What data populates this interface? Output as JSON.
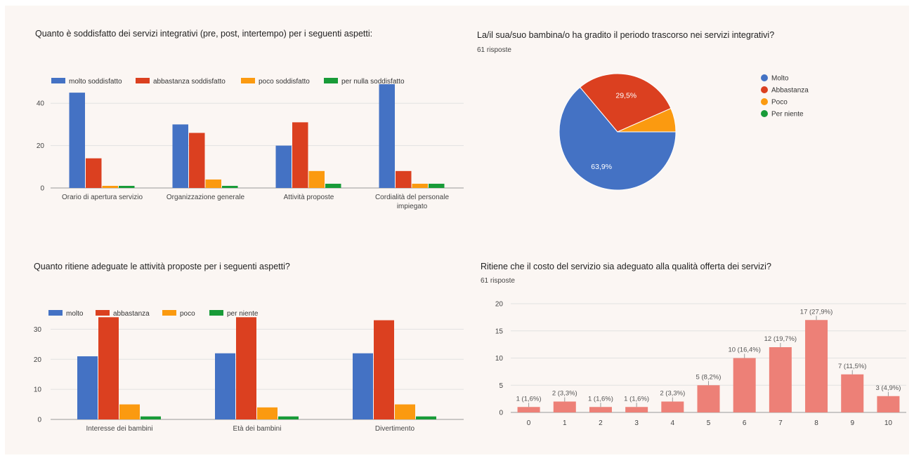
{
  "colors": {
    "blue": "#4472c4",
    "red": "#db4020",
    "orange": "#fb9a10",
    "green": "#189b38",
    "salmon": "#ed8077",
    "grid": "#e2e2e2",
    "axis": "#9a9a9a"
  },
  "chart_data": [
    {
      "type": "bar",
      "title": "Quanto è soddisfatto dei servizi integrativi (pre, post, intertempo) per i seguenti aspetti:",
      "categories": [
        "Orario di apertura servizio",
        "Organizzazione generale",
        "Attività proposte",
        "Cordialità del personale impiegato"
      ],
      "series": [
        {
          "name": "molto soddisfatto",
          "color": "#4472c4",
          "values": [
            45,
            30,
            20,
            49
          ]
        },
        {
          "name": "abbastanza soddisfatto",
          "color": "#db4020",
          "values": [
            14,
            26,
            31,
            8
          ]
        },
        {
          "name": "poco soddisfatto",
          "color": "#fb9a10",
          "values": [
            1,
            4,
            8,
            2
          ]
        },
        {
          "name": "per nulla soddisfatto",
          "color": "#189b38",
          "values": [
            1,
            1,
            2,
            2
          ]
        }
      ],
      "ylim": [
        0,
        50
      ],
      "yticks": [
        0,
        20,
        40
      ],
      "legend": "top"
    },
    {
      "type": "pie",
      "title": "La/il sua/suo bambina/o ha gradito il periodo trascorso nei servizi integrativi?",
      "subtitle": "61 risposte",
      "labels": [
        "Molto",
        "Abbastanza",
        "Poco",
        "Per niente"
      ],
      "values": [
        63.9,
        29.5,
        6.6,
        0
      ],
      "display_labels": [
        "63,9%",
        "29,5%",
        "",
        ""
      ],
      "colors": [
        "#4472c4",
        "#db4020",
        "#fb9a10",
        "#189b38"
      ],
      "legend": "right"
    },
    {
      "type": "bar",
      "title": "Quanto ritiene adeguate le attività proposte per i seguenti aspetti?",
      "categories": [
        "Interesse dei bambini",
        "Età dei bambini",
        "Divertimento"
      ],
      "series": [
        {
          "name": "molto",
          "color": "#4472c4",
          "values": [
            21,
            22,
            22
          ]
        },
        {
          "name": "abbastanza",
          "color": "#db4020",
          "values": [
            34,
            34,
            33
          ]
        },
        {
          "name": "poco",
          "color": "#fb9a10",
          "values": [
            5,
            4,
            5
          ]
        },
        {
          "name": "per niente",
          "color": "#189b38",
          "values": [
            1,
            1,
            1
          ]
        }
      ],
      "ylim": [
        0,
        35
      ],
      "yticks": [
        0,
        10,
        20,
        30
      ],
      "legend": "top"
    },
    {
      "type": "bar",
      "title": "Ritiene che il costo del servizio sia adeguato alla qualità offerta dei servizi?",
      "subtitle": "61 risposte",
      "categories": [
        "0",
        "1",
        "2",
        "3",
        "4",
        "5",
        "6",
        "7",
        "8",
        "9",
        "10"
      ],
      "values": [
        1,
        2,
        1,
        1,
        2,
        5,
        10,
        12,
        17,
        7,
        3
      ],
      "data_labels": [
        "1 (1,6%)",
        "2 (3,3%)",
        "1 (1,6%)",
        "1 (1,6%)",
        "2 (3,3%)",
        "5 (8,2%)",
        "10 (16,4%)",
        "12 (19,7%)",
        "17 (27,9%)",
        "7 (11,5%)",
        "3 (4,9%)"
      ],
      "color": "#ed8077",
      "ylim": [
        0,
        20
      ],
      "yticks": [
        0,
        5,
        10,
        15,
        20
      ]
    }
  ]
}
